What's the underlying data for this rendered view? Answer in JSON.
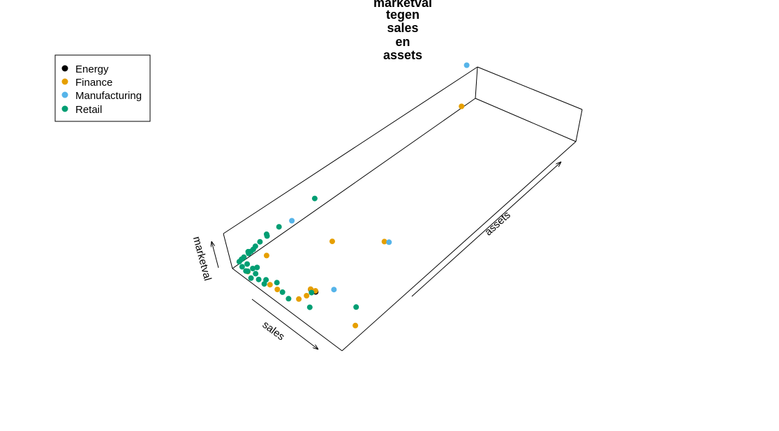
{
  "chart_data": {
    "type": "scatter",
    "title": [
      "marketval",
      "tegen",
      "sales",
      "en",
      "assets"
    ],
    "axes": {
      "x": "sales",
      "y": "assets",
      "z": "marketval"
    },
    "legend": {
      "position": "top-left",
      "entries": [
        {
          "name": "Energy",
          "color": "#000000"
        },
        {
          "name": "Finance",
          "color": "#E69F00"
        },
        {
          "name": "Manufacturing",
          "color": "#56B4E9"
        },
        {
          "name": "Retail",
          "color": "#009E73"
        }
      ]
    },
    "series": [
      {
        "name": "Energy",
        "color": "#000000",
        "points": [
          {
            "sales": 0.55,
            "assets": 0.1,
            "marketval": 0.14
          },
          {
            "sales": 0.5,
            "assets": 0.1,
            "marketval": 0.09
          }
        ]
      },
      {
        "name": "Finance",
        "color": "#E69F00",
        "points": [
          {
            "sales": 0.08,
            "assets": 0.92,
            "marketval": 0.35
          },
          {
            "sales": 0.3,
            "assets": 0.28,
            "marketval": 0.12
          },
          {
            "sales": 0.5,
            "assets": 0.4,
            "marketval": 0.0
          },
          {
            "sales": 0.9,
            "assets": 0.1,
            "marketval": 0.0
          },
          {
            "sales": 0.1,
            "assets": 0.1,
            "marketval": 0.12
          },
          {
            "sales": 0.5,
            "assets": 0.1,
            "marketval": 0.1
          },
          {
            "sales": 0.55,
            "assets": 0.1,
            "marketval": 0.17
          },
          {
            "sales": 0.5,
            "assets": 0.05,
            "marketval": 0.06
          },
          {
            "sales": 0.35,
            "assets": 0.03,
            "marketval": 0.08
          },
          {
            "sales": 0.28,
            "assets": 0.03,
            "marketval": 0.05
          },
          {
            "sales": 0.1,
            "assets": 0.02,
            "marketval": 0.05
          },
          {
            "sales": 0.5,
            "assets": 0.08,
            "marketval": 0.01
          }
        ]
      },
      {
        "name": "Manufacturing",
        "color": "#56B4E9",
        "points": [
          {
            "sales": 0.0,
            "assets": 1.0,
            "marketval": 0.95
          },
          {
            "sales": 0.0,
            "assets": 0.25,
            "marketval": 0.15
          },
          {
            "sales": 0.55,
            "assets": 0.4,
            "marketval": 0.1
          },
          {
            "sales": 0.6,
            "assets": 0.15,
            "marketval": 0.08
          }
        ]
      },
      {
        "name": "Retail",
        "color": "#009E73",
        "points": [
          {
            "sales": 0.0,
            "assets": 0.35,
            "marketval": 0.3
          },
          {
            "sales": 0.0,
            "assets": 0.2,
            "marketval": 0.22
          },
          {
            "sales": 0.0,
            "assets": 0.15,
            "marketval": 0.25
          },
          {
            "sales": 0.0,
            "assets": 0.15,
            "marketval": 0.2
          },
          {
            "sales": 0.0,
            "assets": 0.12,
            "marketval": 0.18
          },
          {
            "sales": 0.0,
            "assets": 0.1,
            "marketval": 0.15
          },
          {
            "sales": 0.5,
            "assets": 0.1,
            "marketval": 0.0
          },
          {
            "sales": 0.25,
            "assets": 0.03,
            "marketval": 0.12
          },
          {
            "sales": 0.4,
            "assets": 0.03,
            "marketval": 0.12
          },
          {
            "sales": 0.6,
            "assets": 0.05,
            "marketval": 0.06
          },
          {
            "sales": 0.3,
            "assets": 0.05,
            "marketval": 0.06
          },
          {
            "sales": 0.45,
            "assets": 0.03,
            "marketval": 0.05
          },
          {
            "sales": 0.8,
            "assets": 0.15,
            "marketval": 0.05
          },
          {
            "sales": 0.0,
            "assets": 0.09,
            "marketval": 0.11
          },
          {
            "sales": 0.0,
            "assets": 0.08,
            "marketval": 0.1
          },
          {
            "sales": 0.0,
            "assets": 0.07,
            "marketval": 0.09
          },
          {
            "sales": 0.0,
            "assets": 0.05,
            "marketval": 0.08
          },
          {
            "sales": 0.0,
            "assets": 0.04,
            "marketval": 0.07
          },
          {
            "sales": 0.0,
            "assets": 0.03,
            "marketval": 0.05
          },
          {
            "sales": 0.05,
            "assets": 0.04,
            "marketval": 0.05
          },
          {
            "sales": 0.1,
            "assets": 0.04,
            "marketval": 0.04
          },
          {
            "sales": 0.15,
            "assets": 0.03,
            "marketval": 0.06
          },
          {
            "sales": 0.2,
            "assets": 0.02,
            "marketval": 0.06
          },
          {
            "sales": 0.1,
            "assets": 0.02,
            "marketval": 0.06
          },
          {
            "sales": 0.05,
            "assets": 0.02,
            "marketval": 0.07
          },
          {
            "sales": 0.08,
            "assets": 0.02,
            "marketval": 0.02
          },
          {
            "sales": 0.12,
            "assets": 0.05,
            "marketval": 0.07
          },
          {
            "sales": 0.15,
            "assets": 0.01,
            "marketval": 0.03
          },
          {
            "sales": 0.25,
            "assets": 0.02,
            "marketval": 0.05
          },
          {
            "sales": 0.0,
            "assets": 0.07,
            "marketval": 0.14
          }
        ]
      }
    ]
  }
}
